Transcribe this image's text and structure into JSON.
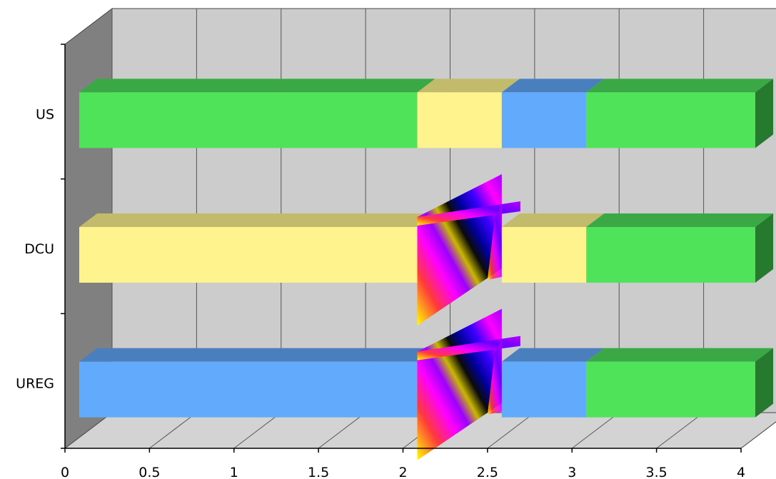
{
  "chart_data": {
    "type": "bar",
    "orientation": "horizontal",
    "stacked": true,
    "three_d": true,
    "title": "",
    "xlabel": "",
    "ylabel": "",
    "xlim": [
      0,
      4
    ],
    "x_ticks": [
      "0",
      "0.5",
      "1",
      "1.5",
      "2",
      "2.5",
      "3",
      "3.5",
      "4"
    ],
    "grid": true,
    "categories": [
      "US",
      "DCU",
      "UREG"
    ],
    "rows": [
      {
        "label": "US",
        "segments": [
          {
            "start": 0,
            "end": 2,
            "fill": "green"
          },
          {
            "start": 2,
            "end": 2.5,
            "fill": "yellow"
          },
          {
            "start": 2.5,
            "end": 3,
            "fill": "blue"
          },
          {
            "start": 3,
            "end": 4,
            "fill": "green"
          }
        ]
      },
      {
        "label": "DCU",
        "segments": [
          {
            "start": 0,
            "end": 2,
            "fill": "yellow"
          },
          {
            "start": 2,
            "end": 2.5,
            "fill": "gradient"
          },
          {
            "start": 2.5,
            "end": 3,
            "fill": "yellow"
          },
          {
            "start": 3,
            "end": 4,
            "fill": "green"
          }
        ]
      },
      {
        "label": "UREG",
        "segments": [
          {
            "start": 0,
            "end": 2,
            "fill": "blue"
          },
          {
            "start": 2,
            "end": 2.5,
            "fill": "gradient"
          },
          {
            "start": 2.5,
            "end": 3,
            "fill": "blue"
          },
          {
            "start": 3,
            "end": 4,
            "fill": "green"
          }
        ]
      }
    ],
    "colors": {
      "green": {
        "front": "#4fe35a",
        "top": "#3aa845",
        "side": "#267a2e"
      },
      "yellow": {
        "front": "#fff38e",
        "top": "#c2bb6c"
      },
      "blue": {
        "front": "#62aafc",
        "top": "#4a7fbd"
      },
      "wall_back": "#cccccc",
      "wall_left": "#808080",
      "floor": "#d3d3d3",
      "grid": "#555555"
    }
  }
}
